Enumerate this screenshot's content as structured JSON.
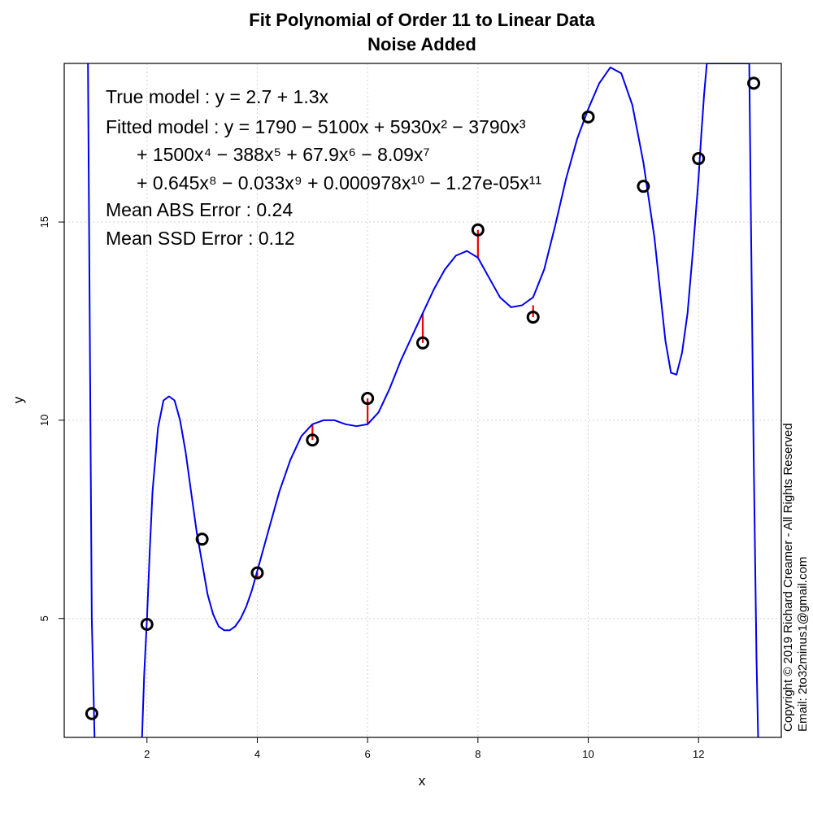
{
  "chart_data": {
    "type": "scatter",
    "title": "Fit Polynomial of Order 11 to Linear Data",
    "subtitle": "Noise Added",
    "xlabel": "x",
    "ylabel": "y",
    "xlim": [
      0.5,
      13.5
    ],
    "ylim": [
      2.0,
      19.0
    ],
    "xticks": [
      2,
      4,
      6,
      8,
      10,
      12
    ],
    "yticks": [
      5,
      10,
      15
    ],
    "grid": true,
    "points": {
      "x": [
        1,
        2,
        3,
        4,
        5,
        6,
        7,
        8,
        9,
        10,
        11,
        12,
        13
      ],
      "y": [
        2.6,
        4.85,
        7.0,
        6.15,
        9.5,
        10.55,
        11.95,
        14.8,
        12.6,
        17.65,
        15.9,
        16.6,
        18.5
      ]
    },
    "residual_segments_to": [
      2.6,
      4.85,
      7.0,
      6.0,
      9.9,
      9.9,
      12.7,
      14.1,
      12.9,
      17.65,
      15.9,
      16.6,
      18.5
    ],
    "fit_curve": {
      "x": [
        0.93,
        1.0,
        1.05,
        1.1,
        1.91,
        1.95,
        2.0,
        2.05,
        2.1,
        2.2,
        2.3,
        2.4,
        2.5,
        2.6,
        2.7,
        2.8,
        2.9,
        3.0,
        3.1,
        3.2,
        3.3,
        3.4,
        3.5,
        3.6,
        3.7,
        3.8,
        3.9,
        4.0,
        4.2,
        4.4,
        4.6,
        4.8,
        5.0,
        5.2,
        5.4,
        5.6,
        5.8,
        6.0,
        6.2,
        6.4,
        6.6,
        6.8,
        7.0,
        7.2,
        7.4,
        7.6,
        7.8,
        8.0,
        8.2,
        8.4,
        8.6,
        8.8,
        9.0,
        9.2,
        9.4,
        9.6,
        9.8,
        10.0,
        10.2,
        10.4,
        10.6,
        10.8,
        11.0,
        11.2,
        11.3,
        11.4,
        11.5,
        11.6,
        11.7,
        11.8,
        11.9,
        12.0,
        12.05,
        12.1,
        12.15,
        12.92,
        12.95,
        13.0,
        13.05,
        13.08
      ],
      "y": [
        19.0,
        5.0,
        2.0,
        null,
        2.0,
        3.6,
        5.0,
        6.7,
        8.2,
        9.8,
        10.5,
        10.6,
        10.5,
        10.0,
        9.2,
        8.2,
        7.2,
        6.4,
        5.6,
        5.1,
        4.8,
        4.7,
        4.7,
        4.8,
        5.0,
        5.3,
        5.7,
        6.2,
        7.2,
        8.2,
        9.0,
        9.6,
        9.9,
        10.0,
        10.0,
        9.9,
        9.85,
        9.9,
        10.2,
        10.8,
        11.5,
        12.1,
        12.7,
        13.3,
        13.8,
        14.15,
        14.27,
        14.1,
        13.6,
        13.1,
        12.85,
        12.9,
        13.1,
        13.8,
        14.9,
        16.1,
        17.1,
        17.85,
        18.5,
        18.9,
        18.75,
        17.95,
        16.5,
        14.6,
        13.3,
        12.0,
        11.2,
        11.15,
        11.7,
        12.7,
        14.3,
        16.1,
        17.2,
        18.2,
        19.0,
        19.0,
        15.0,
        9.0,
        4.0,
        2.0
      ]
    },
    "annotations": {
      "true_model": "True model : y = 2.7 + 1.3x",
      "fitted_line1": "Fitted model : y = 1790 − 5100x + 5930x² − 3790x³",
      "fitted_line2": "+ 1500x⁴ − 388x⁵ + 67.9x⁶ − 8.09x⁷",
      "fitted_line3": "+ 0.645x⁸ − 0.033x⁹ + 0.000978x¹⁰ − 1.27e-05x¹¹",
      "mean_abs_error": "Mean ABS Error : 0.24",
      "mean_ssd_error": "Mean SSD Error : 0.12"
    },
    "colors": {
      "curve": "#0000EE",
      "residual": "#EE0000",
      "points": "#000000",
      "grid": "#D3D3D3"
    }
  },
  "copyright": {
    "line1": "Copyright © 2019 Richard Creamer - All Rights Reserved",
    "line2": "Email: 2to32minus1@gmail.com"
  }
}
